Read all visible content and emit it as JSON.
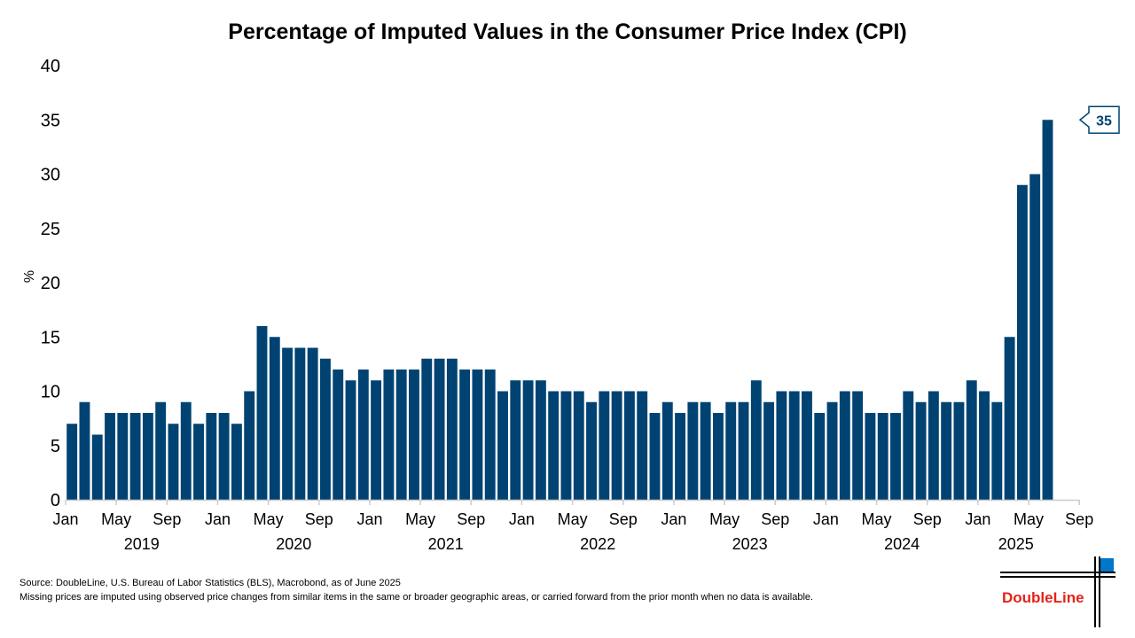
{
  "chart_data": {
    "type": "bar",
    "title": "Percentage of Imputed Values in the Consumer Price Index (CPI)",
    "ylabel": "%",
    "xlabel": "",
    "ylim": [
      0,
      40
    ],
    "yticks": [
      0,
      5,
      10,
      15,
      20,
      25,
      30,
      35,
      40
    ],
    "x_month_ticks": [
      "Jan",
      "May",
      "Sep"
    ],
    "x_year_labels": [
      "2019",
      "2020",
      "2021",
      "2022",
      "2023",
      "2024",
      "2025"
    ],
    "x_range": [
      "2019-01",
      "2025-09"
    ],
    "grid": false,
    "bar_color": "#004372",
    "start": "2019-01",
    "values": [
      7,
      9,
      6,
      8,
      8,
      8,
      8,
      9,
      7,
      9,
      7,
      8,
      8,
      7,
      10,
      16,
      15,
      14,
      14,
      14,
      13,
      12,
      11,
      12,
      11,
      12,
      12,
      12,
      13,
      13,
      13,
      12,
      12,
      12,
      10,
      11,
      11,
      11,
      10,
      10,
      10,
      9,
      10,
      10,
      10,
      10,
      8,
      9,
      8,
      9,
      9,
      8,
      9,
      9,
      11,
      9,
      10,
      10,
      10,
      8,
      9,
      10,
      10,
      8,
      8,
      8,
      10,
      9,
      10,
      9,
      9,
      11,
      10,
      9,
      15,
      29,
      30,
      35
    ],
    "last_value_label": "35"
  },
  "footer": {
    "source": "Source: DoubleLine, U.S. Bureau of Labor Statistics (BLS), Macrobond, as of June 2025",
    "note": "Missing prices are imputed using observed price changes from similar items in the same or broader geographic areas, or carried forward from the prior month when no data is available."
  },
  "logo": {
    "text": "DoubleLine",
    "color": "#e2231a",
    "accent": "#0077c8"
  }
}
